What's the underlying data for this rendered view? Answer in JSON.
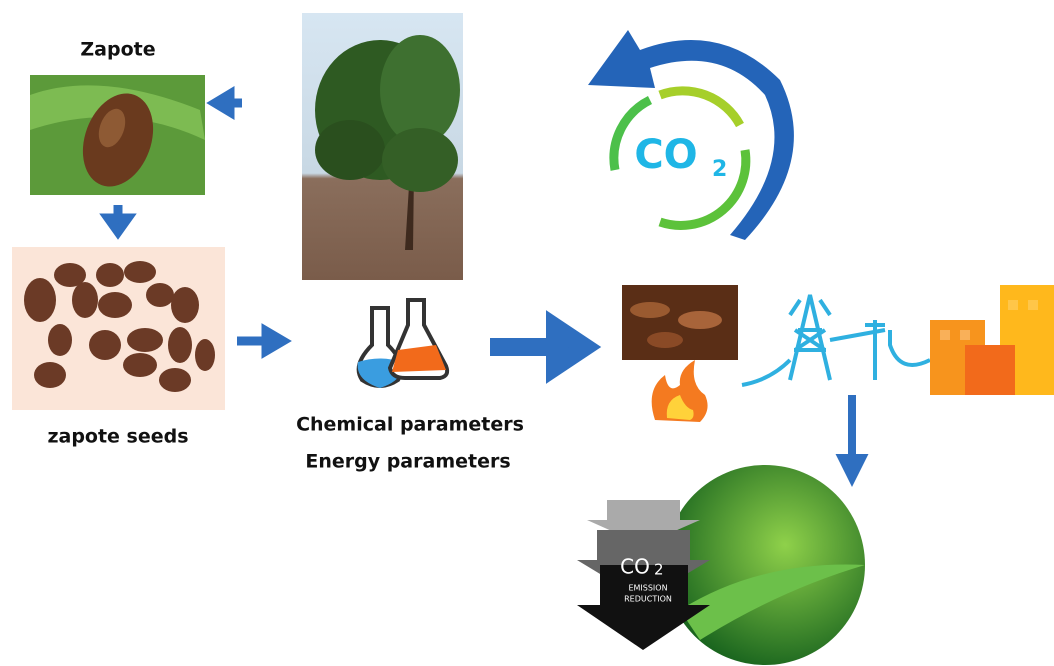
{
  "labels": {
    "zapote": "Zapote",
    "seeds": "zapote seeds",
    "chemical": "Chemical parameters",
    "energy": "Energy parameters"
  },
  "co2_cycle": {
    "main": "CO",
    "sub": "2"
  },
  "reduction": {
    "main": "CO",
    "sub": "2",
    "line1": "EMISSION",
    "line2": "REDUCTION"
  }
}
